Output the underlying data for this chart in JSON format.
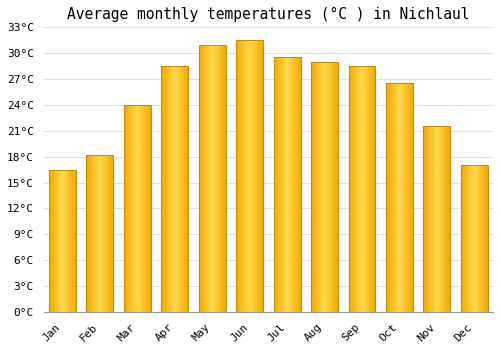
{
  "title": "Average monthly temperatures (°C ) in Nichlaul",
  "months": [
    "Jan",
    "Feb",
    "Mar",
    "Apr",
    "May",
    "Jun",
    "Jul",
    "Aug",
    "Sep",
    "Oct",
    "Nov",
    "Dec"
  ],
  "values": [
    16.5,
    18.2,
    24.0,
    28.5,
    31.0,
    31.5,
    29.5,
    29.0,
    28.5,
    26.5,
    21.5,
    17.0
  ],
  "bar_color_left": "#F5A800",
  "bar_color_center": "#FFD84D",
  "bar_edge_color": "#C8860A",
  "ylim": [
    0,
    33
  ],
  "yticks": [
    0,
    3,
    6,
    9,
    12,
    15,
    18,
    21,
    24,
    27,
    30,
    33
  ],
  "ytick_labels": [
    "0°C",
    "3°C",
    "6°C",
    "9°C",
    "12°C",
    "15°C",
    "18°C",
    "21°C",
    "24°C",
    "27°C",
    "30°C",
    "33°C"
  ],
  "background_color": "#ffffff",
  "grid_color": "#e0e0e0",
  "title_fontsize": 10.5,
  "tick_fontsize": 8,
  "font_family": "monospace",
  "bar_width": 0.72,
  "n_grad": 60
}
